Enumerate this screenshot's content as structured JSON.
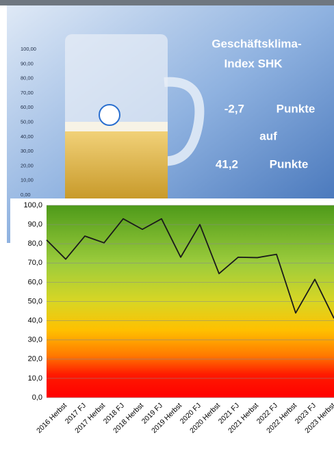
{
  "banner": {
    "title_lines": [
      "Geschäftsklima-",
      "Index SHK"
    ],
    "change": "-2,7",
    "change_unit": "Punkte",
    "connector": "auf",
    "level": "41,2",
    "level_unit": "Punkte",
    "scale_labels": [
      "100,00",
      "90,00",
      "80,00",
      "70,00",
      "60,00",
      "50,00",
      "40,00",
      "30,00",
      "20,00",
      "10,00",
      "0,00"
    ]
  },
  "chart_data": {
    "type": "line",
    "categories": [
      null,
      "2016 Herbst",
      "2017 FJ",
      "2017 Herbst",
      "2018 FJ",
      "2018 Herbst",
      "2019 FJ",
      "2019 Herbst",
      "2020 FJ",
      "2020 Herbst",
      "2021 FJ",
      "2021 Herbst",
      "2022 FJ",
      "2022 Herbst",
      "2023 FJ",
      "2023 Herbst"
    ],
    "values": [
      82,
      72,
      84,
      80.5,
      93,
      87.5,
      93,
      73,
      90,
      64.5,
      73,
      72.8,
      74.5,
      44,
      61.5,
      41.2
    ],
    "color": "#1a1a1a",
    "ylim": [
      0,
      100
    ],
    "yticks": [
      {
        "value": 0,
        "label": "0,0"
      },
      {
        "value": 10,
        "label": "10,0"
      },
      {
        "value": 20,
        "label": "20,0"
      },
      {
        "value": 30,
        "label": "30,0"
      },
      {
        "value": 40,
        "label": "40,0"
      },
      {
        "value": 50,
        "label": "50,0"
      },
      {
        "value": 60,
        "label": "60,0"
      },
      {
        "value": 70,
        "label": "70,0"
      },
      {
        "value": 80,
        "label": "80,0"
      },
      {
        "value": 90,
        "label": "90,0"
      },
      {
        "value": 100,
        "label": "100,0"
      }
    ],
    "grid": true
  }
}
